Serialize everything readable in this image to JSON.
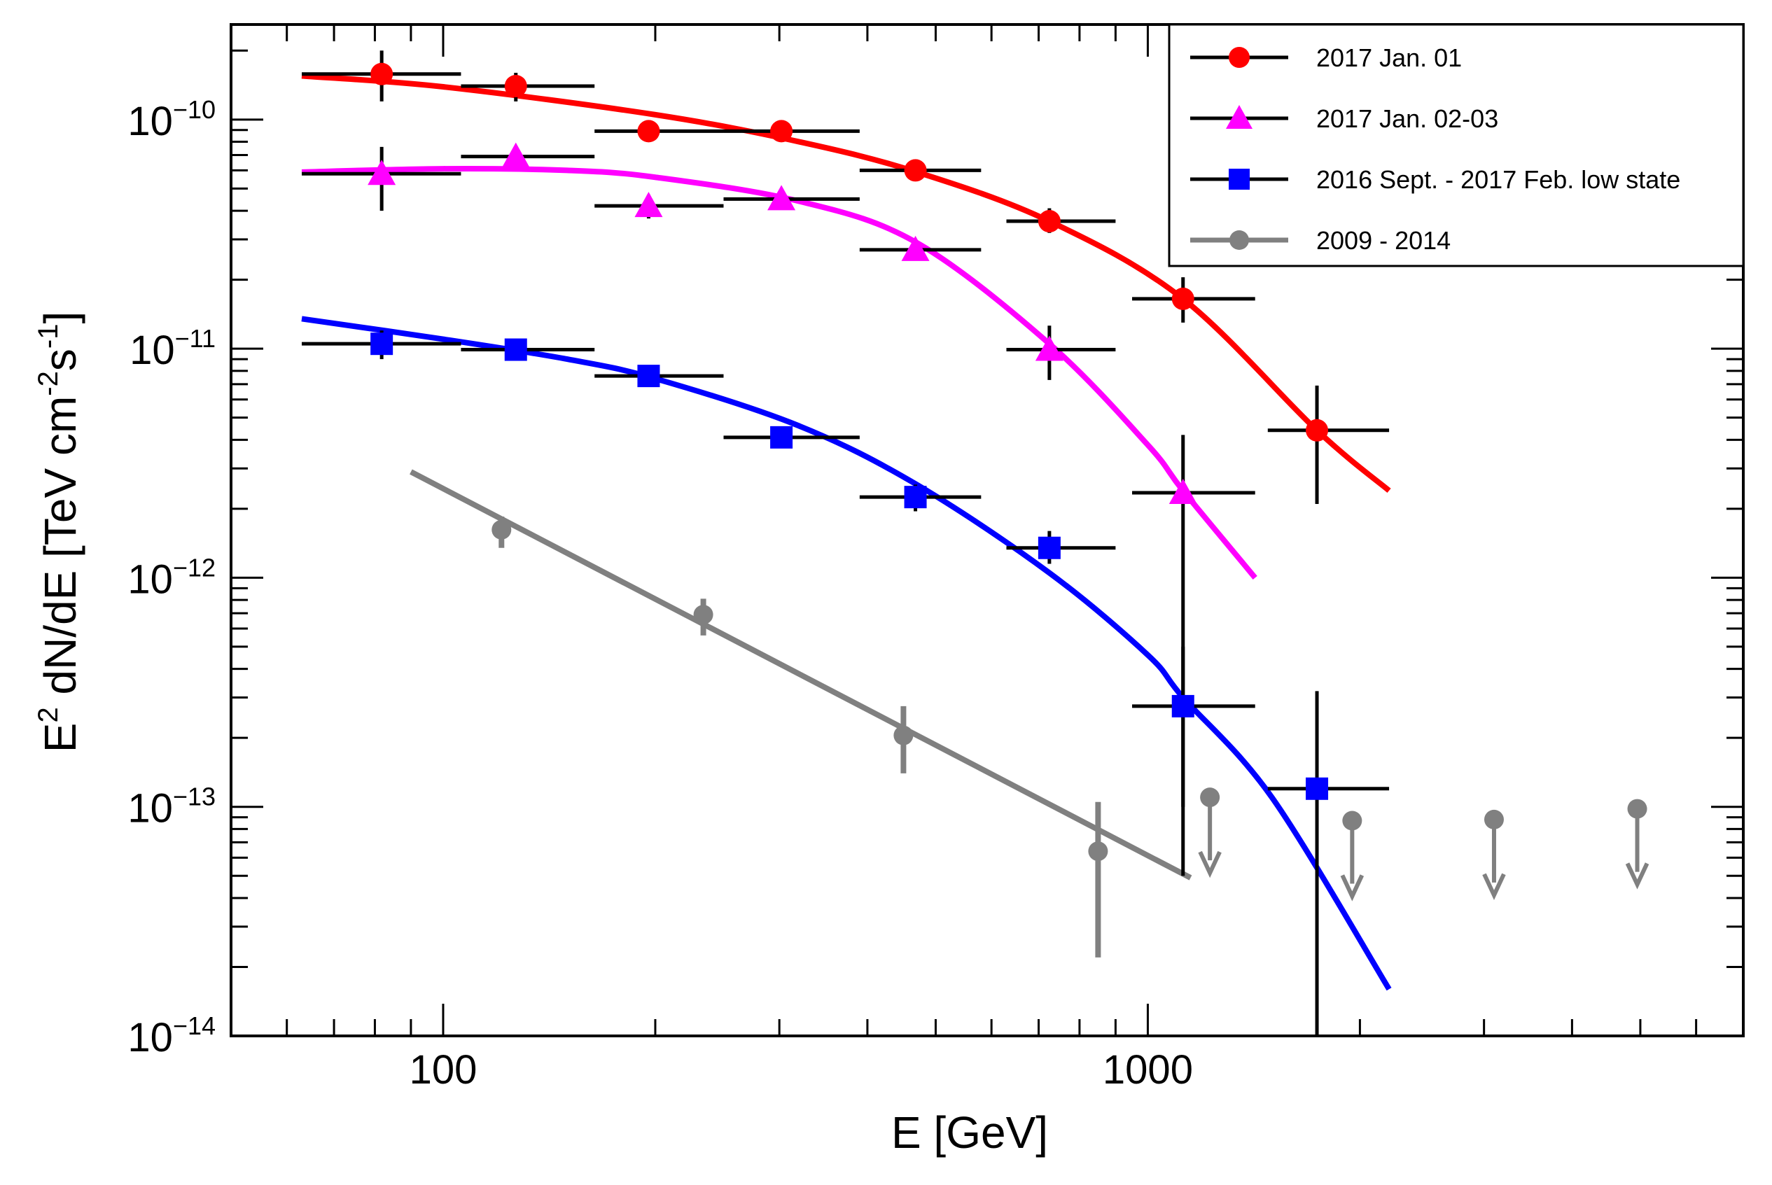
{
  "chart_data": {
    "type": "scatter",
    "title": "",
    "xlabel": "E [GeV]",
    "ylabel_parts": [
      "E",
      "2",
      " dN/dE [TeV cm",
      "-2",
      "s",
      "-1",
      "]"
    ],
    "x_scale": "log",
    "y_scale": "log",
    "xlim": [
      50,
      7000
    ],
    "ylim": [
      1e-14,
      2.6e-10
    ],
    "x_tick_labels": [
      {
        "value": 100,
        "label": "100"
      },
      {
        "value": 1000,
        "label": "1000"
      }
    ],
    "y_tick_labels": [
      {
        "value": 1e-10,
        "base": "10",
        "exp": "−10"
      },
      {
        "value": 1e-11,
        "base": "10",
        "exp": "−11"
      },
      {
        "value": 1e-12,
        "base": "10",
        "exp": "−12"
      },
      {
        "value": 1e-13,
        "base": "10",
        "exp": "−13"
      },
      {
        "value": 1e-14,
        "base": "10",
        "exp": "−14"
      }
    ],
    "legend_position": "top-right",
    "series": [
      {
        "name": "2017 Jan. 01",
        "color": "#ff0000",
        "marker": "circle",
        "points": [
          {
            "x": 81.8,
            "y": 1.58e-10,
            "xlo": 63,
            "xhi": 106,
            "ylo": 1.2e-10,
            "yhi": 2e-10
          },
          {
            "x": 126.8,
            "y": 1.4e-10,
            "xlo": 106,
            "xhi": 164,
            "ylo": 1.2e-10,
            "yhi": 1.6e-10
          },
          {
            "x": 195.7,
            "y": 8.9e-11,
            "xlo": 164,
            "xhi": 250,
            "ylo": 8e-11,
            "yhi": 9.8e-11
          },
          {
            "x": 302,
            "y": 8.9e-11,
            "xlo": 250,
            "xhi": 390,
            "ylo": 8.2e-11,
            "yhi": 9.6e-11
          },
          {
            "x": 468,
            "y": 6e-11,
            "xlo": 390,
            "xhi": 580,
            "ylo": 5.5e-11,
            "yhi": 6.5e-11
          },
          {
            "x": 725,
            "y": 3.6e-11,
            "xlo": 630,
            "xhi": 900,
            "ylo": 3.2e-11,
            "yhi": 4.1e-11
          },
          {
            "x": 1122,
            "y": 1.65e-11,
            "xlo": 950,
            "xhi": 1420,
            "ylo": 1.3e-11,
            "yhi": 2.05e-11
          },
          {
            "x": 1738,
            "y": 4.4e-12,
            "xlo": 1480,
            "xhi": 2200,
            "ylo": 2.1e-12,
            "yhi": 6.9e-12
          }
        ],
        "fit": {
          "x_from": 63,
          "x_to": 2200,
          "y": [
            1.55e-10,
            1.39e-10,
            1.05e-10,
            8e-11,
            5.9e-11,
            3.6e-11,
            1.65e-11,
            4.4e-12,
            2.4e-12
          ],
          "x": [
            63,
            100,
            200,
            320,
            470,
            725,
            1122,
            1738,
            2200
          ]
        }
      },
      {
        "name": "2017 Jan. 02-03",
        "color": "#ff00ff",
        "marker": "triangle",
        "points": [
          {
            "x": 81.8,
            "y": 5.8e-11,
            "xlo": 63,
            "xhi": 106,
            "ylo": 4e-11,
            "yhi": 7.6e-11
          },
          {
            "x": 126.8,
            "y": 6.9e-11,
            "xlo": 106,
            "xhi": 164,
            "ylo": 6.3e-11,
            "yhi": 7.5e-11
          },
          {
            "x": 195.7,
            "y": 4.2e-11,
            "xlo": 164,
            "xhi": 250,
            "ylo": 3.7e-11,
            "yhi": 4.7e-11
          },
          {
            "x": 302,
            "y": 4.5e-11,
            "xlo": 250,
            "xhi": 390,
            "ylo": 4.1e-11,
            "yhi": 4.9e-11
          },
          {
            "x": 468,
            "y": 2.7e-11,
            "xlo": 390,
            "xhi": 580,
            "ylo": 2.45e-11,
            "yhi": 2.95e-11
          },
          {
            "x": 725,
            "y": 9.9e-12,
            "xlo": 630,
            "xhi": 900,
            "ylo": 7.3e-12,
            "yhi": 1.26e-11
          },
          {
            "x": 1122,
            "y": 2.35e-12,
            "xlo": 950,
            "xhi": 1420,
            "ylo": 1e-13,
            "yhi": 4.2e-12
          }
        ],
        "fit": {
          "x": [
            63,
            100,
            150,
            200,
            320,
            470,
            725,
            1000,
            1122,
            1420
          ],
          "y": [
            5.9e-11,
            6.1e-11,
            6e-11,
            5.6e-11,
            4.4e-11,
            2.9e-11,
            1.05e-11,
            3.8e-12,
            2.4e-12,
            1e-12
          ]
        }
      },
      {
        "name": "2016 Sept. - 2017 Feb. low state",
        "color": "#0000ff",
        "marker": "square",
        "points": [
          {
            "x": 81.8,
            "y": 1.05e-11,
            "xlo": 63,
            "xhi": 106,
            "ylo": 9e-12,
            "yhi": 1.2e-11
          },
          {
            "x": 126.8,
            "y": 9.9e-12,
            "xlo": 106,
            "xhi": 164,
            "ylo": 9.3e-12,
            "yhi": 1.05e-11
          },
          {
            "x": 195.7,
            "y": 7.6e-12,
            "xlo": 164,
            "xhi": 250,
            "ylo": 7.2e-12,
            "yhi": 8e-12
          },
          {
            "x": 302,
            "y": 4.1e-12,
            "xlo": 250,
            "xhi": 390,
            "ylo": 3.8e-12,
            "yhi": 4.4e-12
          },
          {
            "x": 468,
            "y": 2.25e-12,
            "xlo": 390,
            "xhi": 580,
            "ylo": 1.95e-12,
            "yhi": 2.55e-12
          },
          {
            "x": 725,
            "y": 1.35e-12,
            "xlo": 630,
            "xhi": 900,
            "ylo": 1.15e-12,
            "yhi": 1.6e-12
          },
          {
            "x": 1122,
            "y": 2.75e-13,
            "xlo": 950,
            "xhi": 1420,
            "ylo": 5e-14,
            "yhi": 5e-13
          },
          {
            "x": 1738,
            "y": 1.2e-13,
            "xlo": 1480,
            "xhi": 2200,
            "ylo": 1e-14,
            "yhi": 3.2e-13
          }
        ],
        "fit": {
          "x": [
            63,
            100,
            150,
            200,
            320,
            470,
            725,
            1000,
            1122,
            1500,
            2200
          ],
          "y": [
            1.35e-11,
            1.1e-11,
            9e-12,
            7.4e-12,
            4.6e-12,
            2.55e-12,
            1.05e-12,
            4.6e-13,
            3e-13,
            1.1e-13,
            1.6e-14
          ]
        }
      },
      {
        "name": "2009 - 2014",
        "color": "#808080",
        "marker": "circle-small",
        "points": [
          {
            "x": 121,
            "y": 1.62e-12,
            "ylo": 1.35e-12,
            "yhi": 1.85e-12
          },
          {
            "x": 234,
            "y": 6.9e-13,
            "ylo": 5.6e-13,
            "yhi": 8.1e-13
          },
          {
            "x": 450,
            "y": 2.05e-13,
            "ylo": 1.4e-13,
            "yhi": 2.75e-13
          },
          {
            "x": 850,
            "y": 6.4e-14,
            "ylo": 2.2e-14,
            "yhi": 1.05e-13
          }
        ],
        "upper_limits": [
          {
            "x": 1225,
            "y": 1.1e-13
          },
          {
            "x": 1950,
            "y": 8.7e-14
          },
          {
            "x": 3100,
            "y": 8.8e-14
          },
          {
            "x": 4950,
            "y": 9.8e-14
          }
        ],
        "fit": {
          "x": [
            90,
            1150
          ],
          "y": [
            2.9e-12,
            4.9e-14
          ]
        }
      }
    ]
  }
}
